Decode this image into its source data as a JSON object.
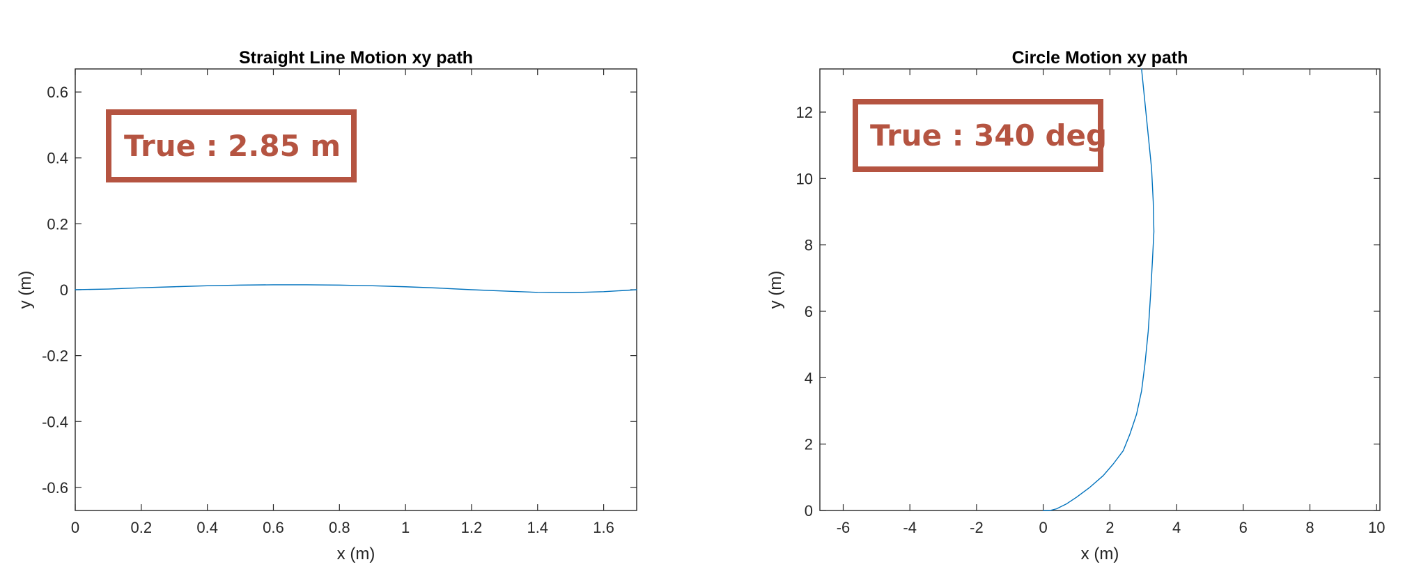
{
  "colors": {
    "series": "#0072BD",
    "annotation": "#B55441",
    "axis": "#262626"
  },
  "chart_data": [
    {
      "type": "line",
      "title": "Straight Line Motion xy path",
      "xlabel": "x (m)",
      "ylabel": "y (m)",
      "xlim": [
        0,
        1.7
      ],
      "ylim": [
        -0.67,
        0.67
      ],
      "xticks": [
        0,
        0.2,
        0.4,
        0.6,
        0.8,
        1,
        1.2,
        1.4,
        1.6
      ],
      "xtick_labels": [
        "0",
        "0.2",
        "0.4",
        "0.6",
        "0.8",
        "1",
        "1.2",
        "1.4",
        "1.6"
      ],
      "yticks": [
        -0.6,
        -0.4,
        -0.2,
        0,
        0.2,
        0.4,
        0.6
      ],
      "ytick_labels": [
        "-0.6",
        "-0.4",
        "-0.2",
        "0",
        "0.2",
        "0.4",
        "0.6"
      ],
      "grid": false,
      "annotation": "True : 2.85 m",
      "series": [
        {
          "x": [
            0,
            0.1,
            0.2,
            0.3,
            0.4,
            0.5,
            0.6,
            0.7,
            0.8,
            0.9,
            1.0,
            1.1,
            1.2,
            1.3,
            1.4,
            1.5,
            1.6,
            1.7
          ],
          "y": [
            0,
            0.002,
            0.006,
            0.009,
            0.012,
            0.014,
            0.015,
            0.015,
            0.014,
            0.012,
            0.009,
            0.005,
            0.0,
            -0.004,
            -0.008,
            -0.009,
            -0.006,
            0.0
          ]
        }
      ]
    },
    {
      "type": "line",
      "title": "Circle Motion xy path",
      "xlabel": "x (m)",
      "ylabel": "y (m)",
      "xlim": [
        -6.7,
        10.1
      ],
      "ylim": [
        0,
        13.3
      ],
      "xticks": [
        -6,
        -4,
        -2,
        0,
        2,
        4,
        6,
        8,
        10
      ],
      "xtick_labels": [
        "-6",
        "-4",
        "-2",
        "0",
        "2",
        "4",
        "6",
        "8",
        "10"
      ],
      "yticks": [
        0,
        2,
        4,
        6,
        8,
        10,
        12
      ],
      "ytick_labels": [
        "0",
        "2",
        "4",
        "6",
        "8",
        "10",
        "12"
      ],
      "grid": false,
      "annotation": "True : 340 deg",
      "series": [
        {
          "x": [
            0,
            0.2,
            0.4,
            0.7,
            1.0,
            1.4,
            1.8,
            2.1,
            2.4,
            2.6,
            2.8,
            2.95,
            3.05,
            3.15,
            3.22,
            3.28,
            3.32,
            3.3,
            3.25,
            3.15,
            3.05,
            2.95
          ],
          "y": [
            0,
            0,
            0.05,
            0.2,
            0.4,
            0.7,
            1.05,
            1.4,
            1.8,
            2.3,
            2.9,
            3.6,
            4.4,
            5.4,
            6.5,
            7.6,
            8.4,
            9.3,
            10.3,
            11.3,
            12.3,
            13.3
          ]
        }
      ]
    }
  ]
}
